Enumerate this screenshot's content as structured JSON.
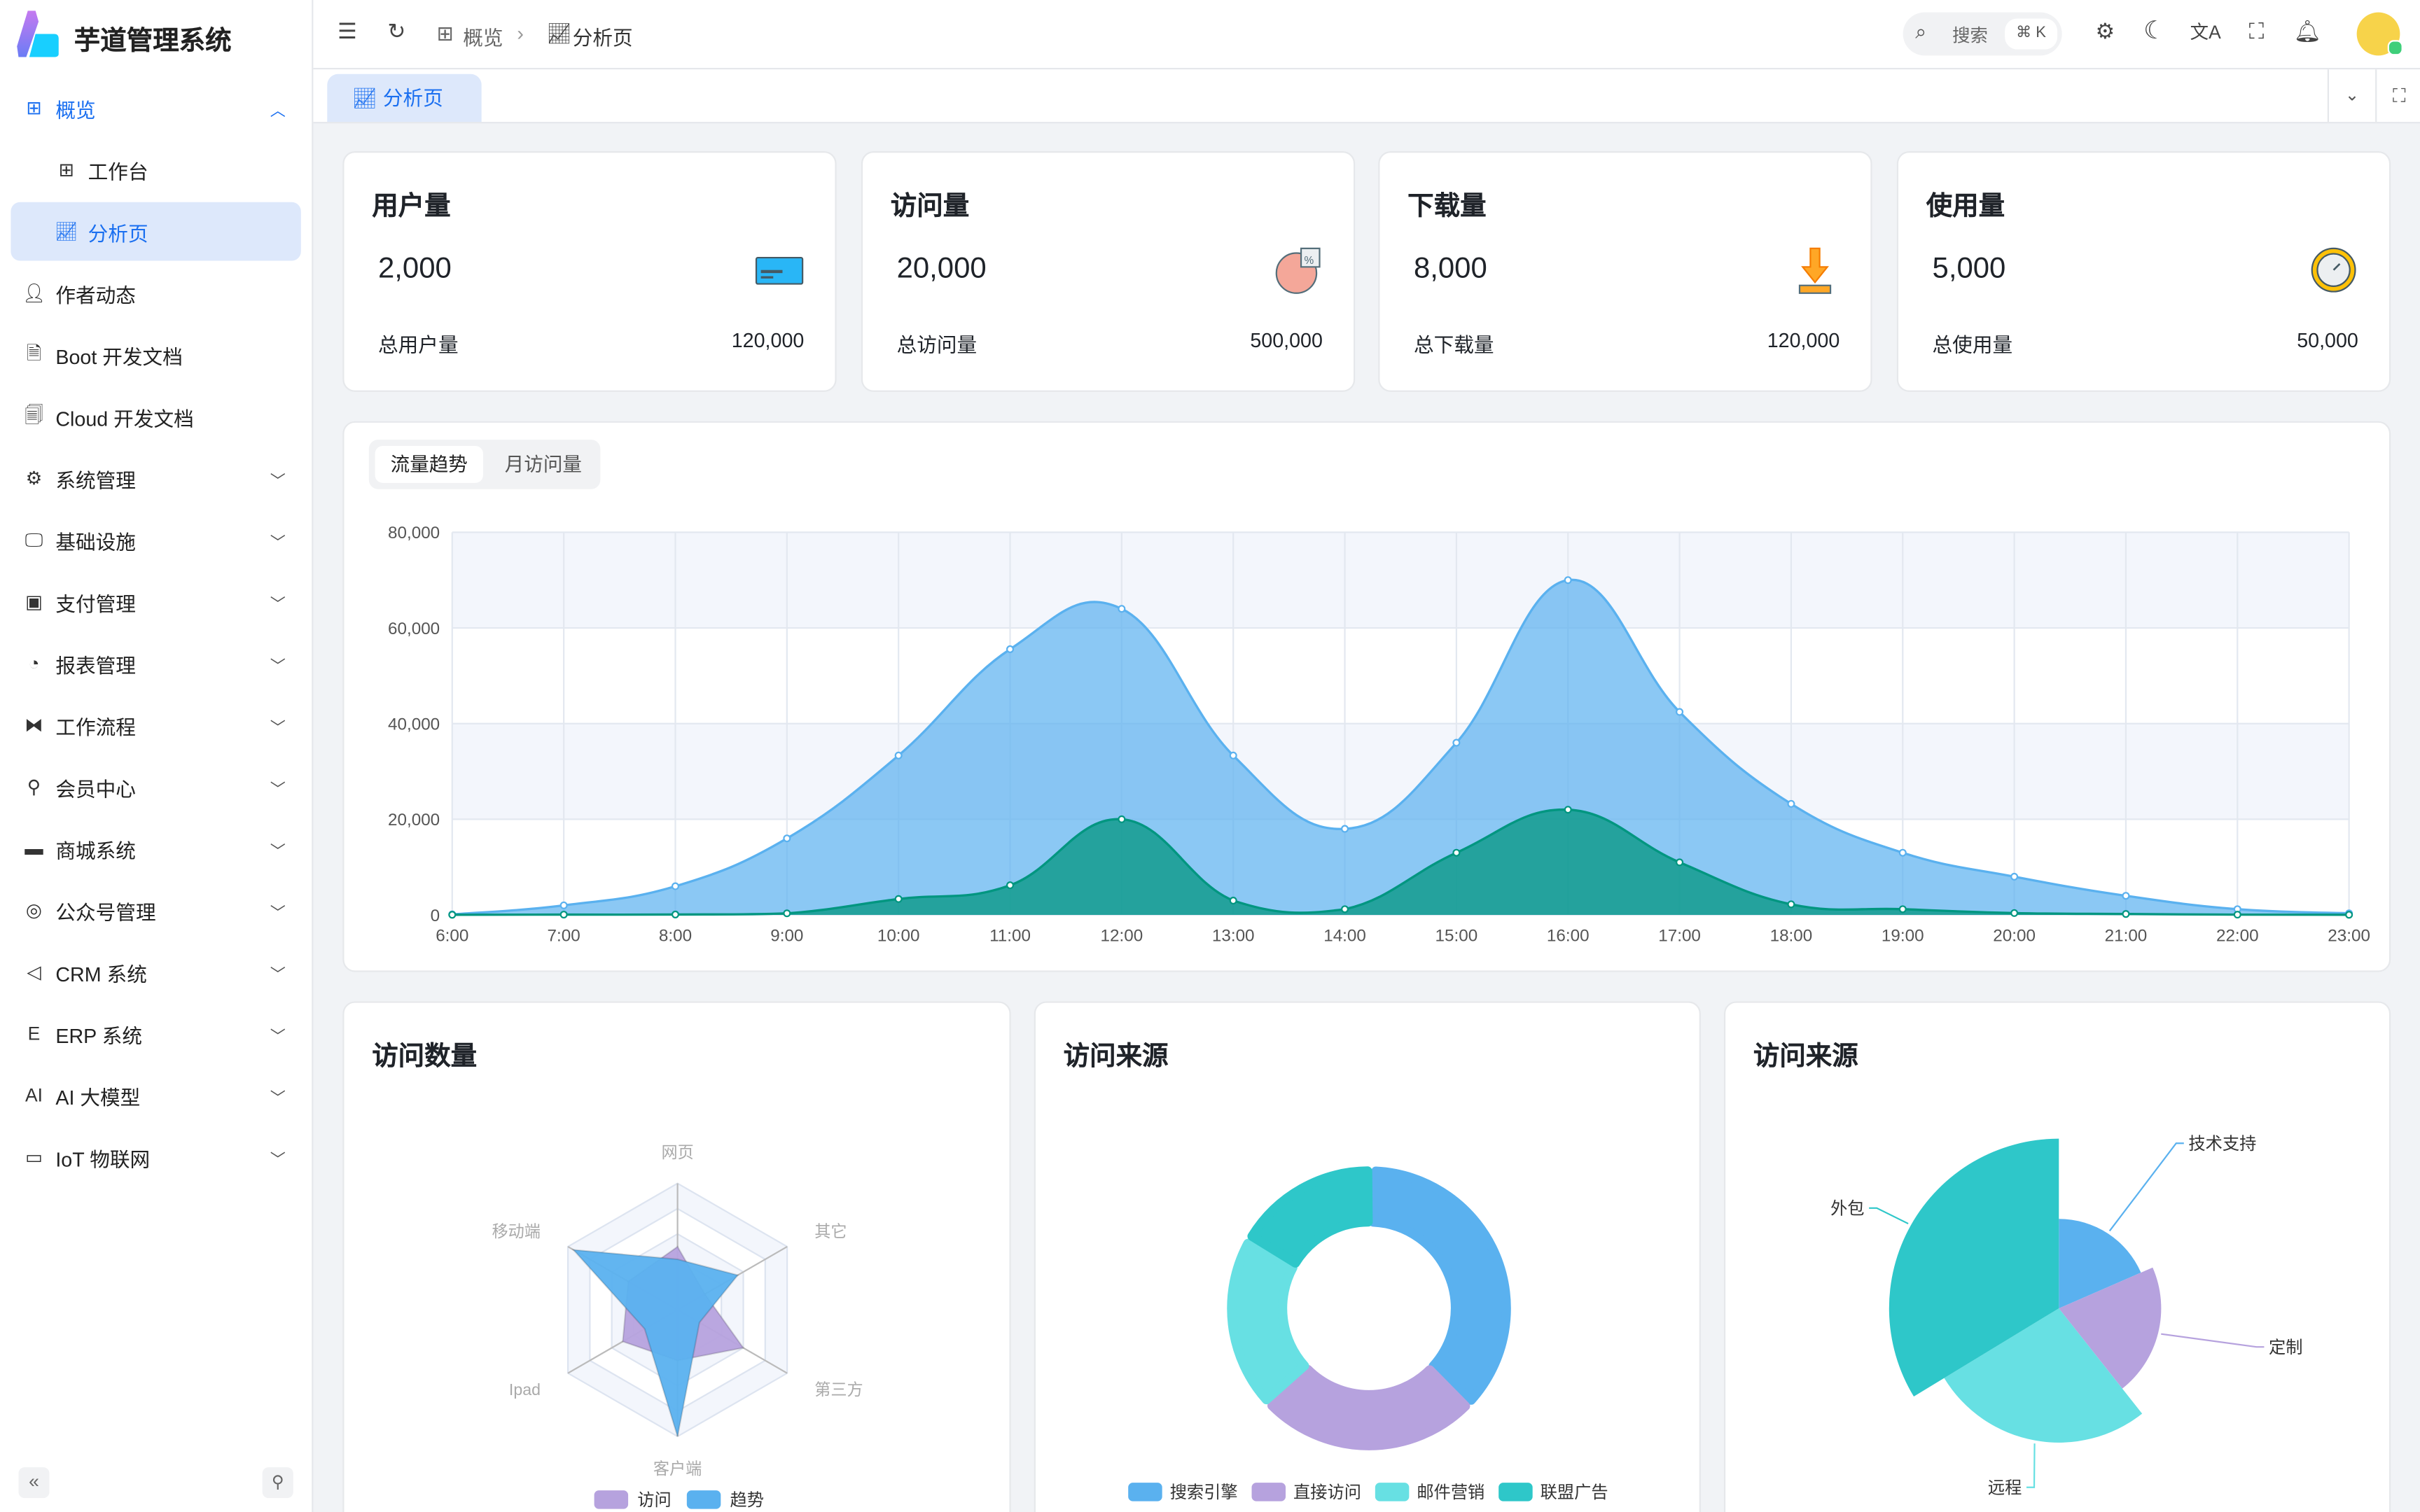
{
  "app": {
    "title": "芋道管理系统"
  },
  "sidebar": {
    "items": [
      {
        "label": "概览",
        "icon": "dashboard-icon",
        "expanded": true,
        "children": [
          {
            "label": "工作台",
            "icon": "workspace-icon"
          },
          {
            "label": "分析页",
            "icon": "chart-icon",
            "selected": true
          }
        ]
      },
      {
        "label": "作者动态",
        "icon": "user-icon"
      },
      {
        "label": "Boot 开发文档",
        "icon": "document-icon"
      },
      {
        "label": "Cloud 开发文档",
        "icon": "documents-icon"
      },
      {
        "label": "系统管理",
        "icon": "gear-icon"
      },
      {
        "label": "基础设施",
        "icon": "monitor-icon"
      },
      {
        "label": "支付管理",
        "icon": "payment-icon"
      },
      {
        "label": "报表管理",
        "icon": "pie-icon"
      },
      {
        "label": "工作流程",
        "icon": "workflow-icon"
      },
      {
        "label": "会员中心",
        "icon": "bicycle-icon"
      },
      {
        "label": "商城系统",
        "icon": "shop-icon"
      },
      {
        "label": "公众号管理",
        "icon": "compass-icon"
      },
      {
        "label": "CRM 系统",
        "icon": "crm-icon"
      },
      {
        "label": "ERP 系统",
        "icon": "erp-icon"
      },
      {
        "label": "AI 大模型",
        "icon": "ai-icon"
      },
      {
        "label": "IoT 物联网",
        "icon": "iot-icon"
      }
    ]
  },
  "header": {
    "breadcrumb": [
      "概览",
      "分析页"
    ],
    "search_placeholder": "搜索",
    "search_shortcut": "⌘ K"
  },
  "tabs": [
    {
      "label": "分析页",
      "active": true
    }
  ],
  "stats": [
    {
      "title": "用户量",
      "value": "2,000",
      "total_label": "总用户量",
      "total": "120,000",
      "icon": "card-icon"
    },
    {
      "title": "访问量",
      "value": "20,000",
      "total_label": "总访问量",
      "total": "500,000",
      "icon": "pie-chart-icon"
    },
    {
      "title": "下载量",
      "value": "8,000",
      "total_label": "总下载量",
      "total": "120,000",
      "icon": "download-icon"
    },
    {
      "title": "使用量",
      "value": "5,000",
      "total_label": "总使用量",
      "total": "50,000",
      "icon": "clock-icon"
    }
  ],
  "trend": {
    "tabs": [
      "流量趋势",
      "月访问量"
    ],
    "active_tab": 0
  },
  "visits": {
    "title": "访问数量"
  },
  "source": {
    "title": "访问来源"
  },
  "source2": {
    "title": "访问来源"
  },
  "chart_data": [
    {
      "type": "area",
      "x": [
        "6:00",
        "7:00",
        "8:00",
        "9:00",
        "10:00",
        "11:00",
        "12:00",
        "13:00",
        "14:00",
        "15:00",
        "16:00",
        "17:00",
        "18:00",
        "19:00",
        "20:00",
        "21:00",
        "22:00",
        "23:00"
      ],
      "yticks": [
        "0",
        "20,000",
        "40,000",
        "60,000",
        "80,000"
      ],
      "ylim": [
        0,
        80000
      ],
      "grid": true,
      "series": [
        {
          "values": [
            111,
            2000,
            6000,
            16000,
            33333,
            55555,
            64000,
            33333,
            18000,
            36000,
            70000,
            42444,
            23222,
            13000,
            8000,
            4000,
            1200,
            333
          ],
          "color": "#5ab1ef"
        },
        {
          "values": [
            33,
            66,
            88,
            333,
            3333,
            6200,
            20000,
            3000,
            1200,
            13000,
            22000,
            11000,
            2221,
            1201,
            390,
            198,
            60,
            30
          ],
          "color": "#019680"
        }
      ]
    },
    {
      "type": "radar",
      "indicators": [
        "网页",
        "其它",
        "第三方",
        "客户端",
        "Ipad",
        "移动端"
      ],
      "max": 100,
      "series": [
        {
          "name": "访问",
          "values": [
            50,
            25,
            60,
            40,
            50,
            45
          ],
          "color": "#b6a2de"
        },
        {
          "name": "趋势",
          "values": [
            40,
            55,
            20,
            100,
            30,
            95
          ],
          "color": "#5ab1ef"
        }
      ],
      "legend": "bottom"
    },
    {
      "type": "pie",
      "variant": "donut",
      "legend": "bottom",
      "slices": [
        {
          "name": "搜索引擎",
          "value": 1048,
          "color": "#5ab1ef"
        },
        {
          "name": "直接访问",
          "value": 735,
          "color": "#b6a2de"
        },
        {
          "name": "邮件营销",
          "value": 580,
          "color": "#67e0e3"
        },
        {
          "name": "联盟广告",
          "value": 484,
          "color": "#2ec7c9"
        }
      ]
    },
    {
      "type": "pie",
      "variant": "rose",
      "slices": [
        {
          "name": "技术支持",
          "value": 274,
          "color": "#5ab1ef"
        },
        {
          "name": "定制",
          "value": 310,
          "color": "#b6a2de"
        },
        {
          "name": "远程",
          "value": 400,
          "color": "#67e0e3"
        },
        {
          "name": "外包",
          "value": 500,
          "color": "#2ec7c9"
        }
      ]
    }
  ]
}
